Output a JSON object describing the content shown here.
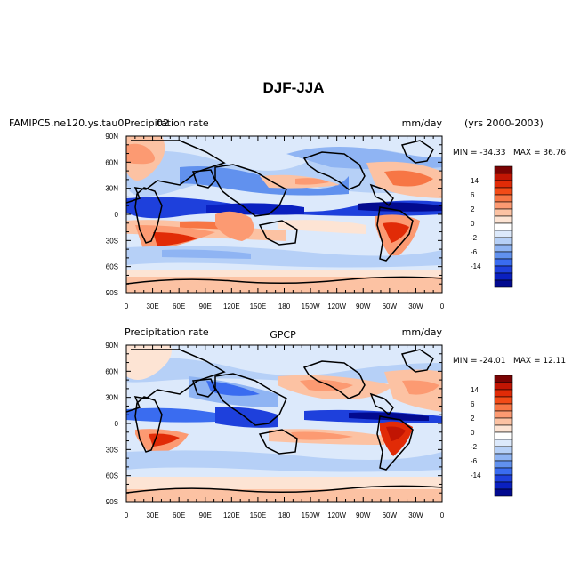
{
  "figure_title": "DJF-JJA",
  "colorbar": {
    "colors": [
      "#7a0303",
      "#c11503",
      "#e12b07",
      "#f24b17",
      "#f77645",
      "#fc9a72",
      "#fcc2a3",
      "#fde4d4",
      "#ffffff",
      "#dce9fb",
      "#b6d0f7",
      "#8fb4f3",
      "#6191ee",
      "#3a6cf0",
      "#1e40dc",
      "#0a20c0",
      "#020a8f"
    ],
    "labels": [
      "14",
      "6",
      "2",
      "0",
      "-2",
      "-6",
      "-14"
    ]
  },
  "chart_data": [
    {
      "type": "heatmap",
      "description_title_left": "FAMIPC5.ne120.ys.tau0",
      "title_left_overlap": "Precipitation rate",
      "title_center": "02",
      "units": "mm/day",
      "years": "(yrs 2000-2003)",
      "min_label": "MIN = -34.33",
      "max_label": "MAX =  36.76",
      "ytick_labels": [
        "90N",
        "60N",
        "30N",
        "0",
        "30S",
        "60S",
        "90S"
      ],
      "xtick_labels": [
        "0",
        "30E",
        "60E",
        "90E",
        "120E",
        "150E",
        "180",
        "150W",
        "120W",
        "90W",
        "60W",
        "30W",
        "0"
      ],
      "xlim": [
        0,
        360
      ],
      "ylim": [
        -90,
        90
      ]
    },
    {
      "type": "heatmap",
      "title_left": "Precipitation rate",
      "title_center": "GPCP",
      "units": "mm/day",
      "min_label": "MIN = -24.01",
      "max_label": "MAX =  12.11",
      "ytick_labels": [
        "90N",
        "60N",
        "30N",
        "0",
        "30S",
        "60S",
        "90S"
      ],
      "xtick_labels": [
        "0",
        "30E",
        "60E",
        "90E",
        "120E",
        "150E",
        "180",
        "150W",
        "120W",
        "90W",
        "60W",
        "30W",
        "0"
      ],
      "xlim": [
        0,
        360
      ],
      "ylim": [
        -90,
        90
      ]
    }
  ]
}
